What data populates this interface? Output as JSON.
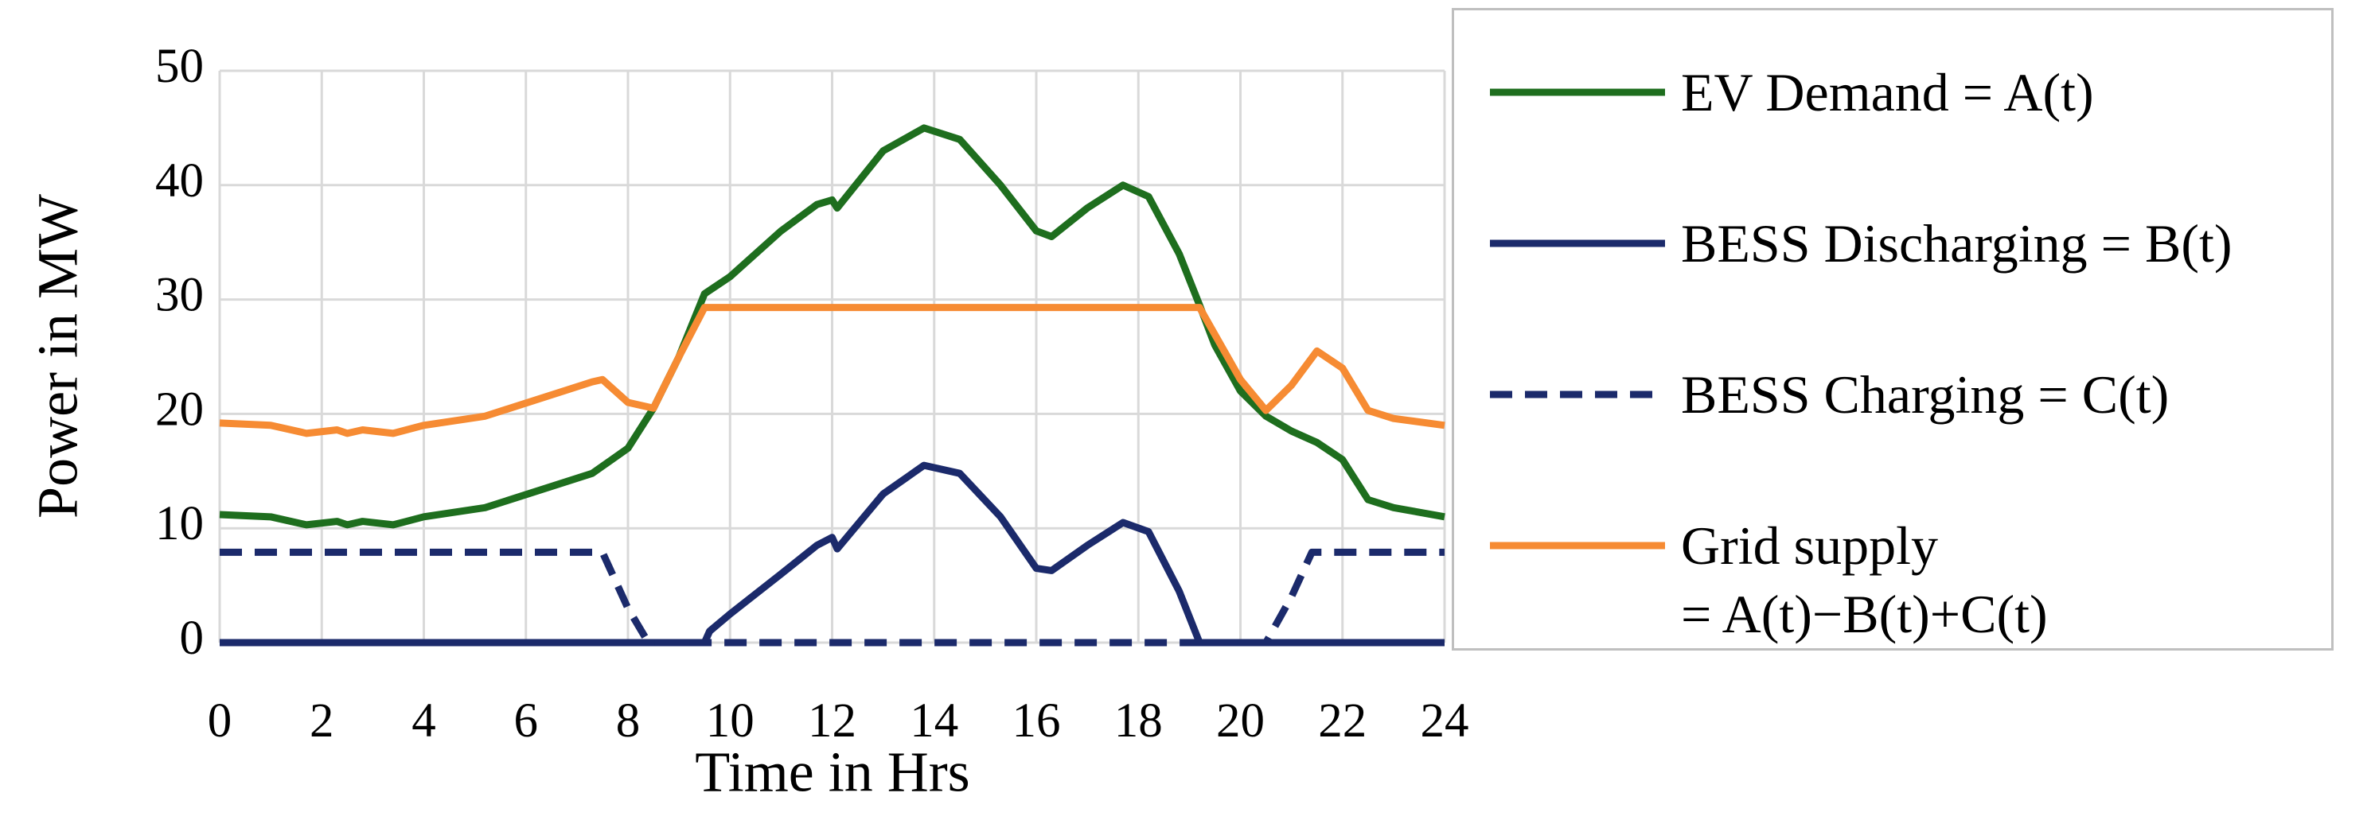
{
  "chart_data": {
    "type": "line",
    "xlabel": "Time in Hrs",
    "ylabel": "Power in MW",
    "xlim": [
      0,
      24
    ],
    "xticks": [
      0,
      2,
      4,
      6,
      8,
      10,
      12,
      14,
      16,
      18,
      20,
      22,
      24
    ],
    "ylim": [
      0,
      50
    ],
    "yticks": [
      0,
      10,
      20,
      30,
      40,
      50
    ],
    "grid": true,
    "legend": "right",
    "series": [
      {
        "name": "EV Demand = A(t)",
        "color": "#1e6e1e",
        "dash": false,
        "x": [
          0,
          1,
          1.7,
          2.3,
          2.5,
          2.8,
          3.4,
          4,
          5.2,
          7.3,
          8,
          8.5,
          9,
          9.5,
          10,
          11,
          11.7,
          12,
          12.1,
          13,
          13.8,
          14.5,
          15.3,
          16,
          16.3,
          17,
          17.7,
          18.2,
          18.8,
          19.2,
          19.5,
          20,
          20.5,
          21,
          21.5,
          22,
          22.5,
          23,
          24
        ],
        "values": [
          11.2,
          11,
          10.3,
          10.6,
          10.3,
          10.6,
          10.3,
          11,
          11.8,
          14.8,
          17,
          20.5,
          25,
          30.5,
          32,
          36,
          38.3,
          38.7,
          38,
          43,
          45,
          44,
          40,
          36,
          35.5,
          38,
          40,
          39,
          34,
          29.5,
          26,
          22,
          19.8,
          18.5,
          17.5,
          16,
          12.5,
          11.8,
          11
        ]
      },
      {
        "name": "BESS Discharging = B(t)",
        "color": "#1b2a6b",
        "dash": false,
        "x": [
          0,
          9.5,
          9.6,
          10,
          11,
          11.7,
          12,
          12.1,
          13,
          13.8,
          14.5,
          15.3,
          16,
          16.3,
          17,
          17.7,
          18.2,
          18.8,
          19.2,
          24
        ],
        "values": [
          0,
          0,
          1,
          2.5,
          6,
          8.5,
          9.2,
          8.2,
          13,
          15.5,
          14.8,
          11,
          6.5,
          6.3,
          8.5,
          10.5,
          9.7,
          4.5,
          0,
          0
        ]
      },
      {
        "name": "BESS Charging = C(t)",
        "color": "#1b2a6b",
        "dash": true,
        "x": [
          0,
          7.5,
          8,
          8.4,
          20.5,
          21,
          21.4,
          24
        ],
        "values": [
          7.9,
          7.9,
          3,
          0,
          0,
          4,
          7.9,
          7.9
        ]
      },
      {
        "name": "Grid supply\n= A(t)−B(t)+C(t)",
        "color": "#f68b33",
        "dash": false,
        "x": [
          0,
          1,
          1.7,
          2.3,
          2.5,
          2.8,
          3.4,
          4,
          5.2,
          7.3,
          7.5,
          8,
          8.5,
          9,
          9.5,
          19.2,
          20,
          20.5,
          21,
          21.5,
          22,
          22.5,
          23,
          24
        ],
        "values": [
          19.2,
          19,
          18.3,
          18.6,
          18.3,
          18.6,
          18.3,
          19,
          19.8,
          22.8,
          23,
          21,
          20.5,
          25,
          29.3,
          29.3,
          23,
          20.3,
          22.5,
          25.5,
          24,
          20.3,
          19.6,
          19
        ]
      }
    ]
  }
}
